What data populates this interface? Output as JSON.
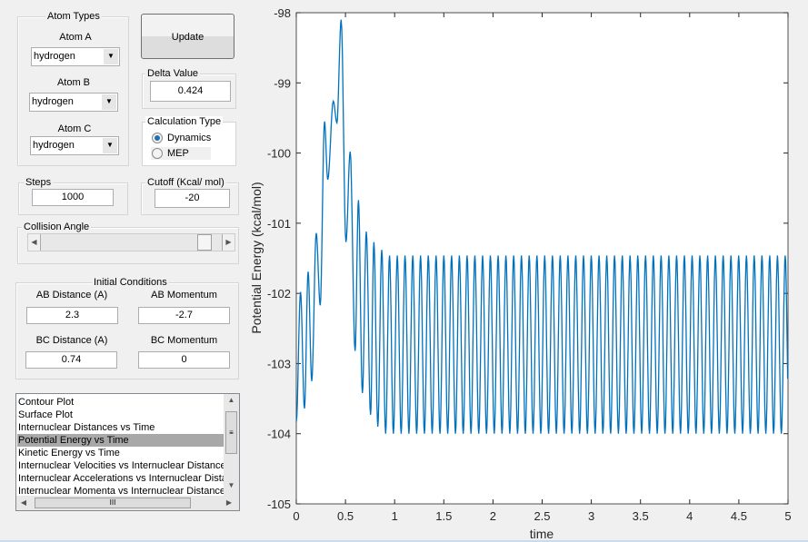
{
  "atom_types": {
    "title": "Atom Types",
    "atom_a": {
      "label": "Atom A",
      "value": "hydrogen"
    },
    "atom_b": {
      "label": "Atom B",
      "value": "hydrogen"
    },
    "atom_c": {
      "label": "Atom C",
      "value": "hydrogen"
    }
  },
  "update_button": "Update",
  "delta": {
    "title": "Delta Value",
    "value": "0.424"
  },
  "calc_type": {
    "title": "Calculation Type",
    "options": [
      "Dynamics",
      "MEP"
    ],
    "selected": "Dynamics"
  },
  "steps": {
    "title": "Steps",
    "value": "1000"
  },
  "cutoff": {
    "title": "Cutoff (Kcal/ mol)",
    "value": "-20"
  },
  "collision_angle": {
    "title": "Collision Angle",
    "level_percent": 94
  },
  "initial_conditions": {
    "title": "Initial Conditions",
    "ab_distance": {
      "label": "AB Distance (A)",
      "value": "2.3"
    },
    "ab_momentum": {
      "label": "AB Momentum",
      "value": "-2.7"
    },
    "bc_distance": {
      "label": "BC Distance (A)",
      "value": "0.74"
    },
    "bc_momentum": {
      "label": "BC Momentum",
      "value": "0"
    }
  },
  "plot_list": {
    "items": [
      "Contour Plot",
      "Surface Plot",
      "Internuclear Distances vs Time",
      "Potential Energy vs Time",
      "Kinetic Energy vs Time",
      "Internuclear Velocities vs Internuclear Distance",
      "Internuclear Accelerations vs Internuclear Distance",
      "Internuclear Momenta vs Internuclear Distance"
    ],
    "selected_index": 3
  },
  "chart_data": {
    "type": "line",
    "xlabel": "time",
    "ylabel": "Potential Energy (kcal/mol)",
    "xlim": [
      0,
      5
    ],
    "ylim": [
      -105,
      -98
    ],
    "xticks": [
      "0",
      "0.5",
      "1",
      "1.5",
      "2",
      "2.5",
      "3",
      "3.5",
      "4",
      "4.5",
      "5"
    ],
    "yticks": [
      "-98",
      "-99",
      "-100",
      "-101",
      "-102",
      "-103",
      "-104",
      "-105"
    ],
    "grid": false,
    "color": "#0072bd",
    "extrema": [
      [
        0,
        -103.83
      ],
      [
        0.043,
        -101.98
      ],
      [
        0.083,
        -103.64
      ],
      [
        0.12,
        -101.69
      ],
      [
        0.157,
        -103.25
      ],
      [
        0.203,
        -101.14
      ],
      [
        0.243,
        -102.17
      ],
      [
        0.287,
        -99.55
      ],
      [
        0.32,
        -100.38
      ],
      [
        0.376,
        -99.26
      ],
      [
        0.413,
        -99.57
      ],
      [
        0.456,
        -98.1
      ],
      [
        0.505,
        -101.27
      ],
      [
        0.548,
        -99.98
      ],
      [
        0.598,
        -102.82
      ],
      [
        0.632,
        -100.67
      ],
      [
        0.672,
        -103.42
      ],
      [
        0.712,
        -101.12
      ],
      [
        0.755,
        -103.73
      ],
      [
        0.789,
        -101.27
      ],
      [
        0.829,
        -103.9
      ],
      [
        0.869,
        -101.38
      ]
    ],
    "steady_oscillation": {
      "start_time": 0.869,
      "period": 0.0789,
      "max": -101.46,
      "min": -104.0
    }
  }
}
